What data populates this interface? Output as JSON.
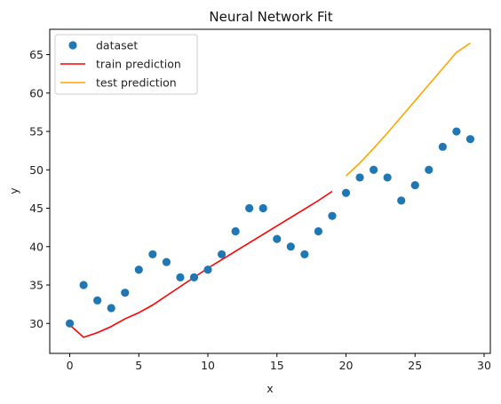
{
  "chart_data": {
    "type": "scatter",
    "title": "Neural Network Fit",
    "xlabel": "x",
    "ylabel": "y",
    "xlim": [
      -1.45,
      30.45
    ],
    "ylim": [
      26.1,
      68.3
    ],
    "xticks": [
      0,
      5,
      10,
      15,
      20,
      25,
      30
    ],
    "yticks": [
      30,
      35,
      40,
      45,
      50,
      55,
      60,
      65
    ],
    "grid": false,
    "legend_position": "top-left",
    "series": [
      {
        "name": "dataset",
        "kind": "scatter",
        "color": "#1f77b4",
        "x": [
          0,
          1,
          2,
          3,
          4,
          5,
          6,
          7,
          8,
          9,
          10,
          11,
          12,
          13,
          14,
          15,
          16,
          17,
          18,
          19,
          20,
          21,
          22,
          23,
          24,
          25,
          26,
          27,
          28,
          29
        ],
        "y": [
          30,
          35,
          33,
          32,
          34,
          37,
          39,
          38,
          36,
          36,
          37,
          39,
          42,
          45,
          45,
          41,
          40,
          39,
          42,
          44,
          47,
          49,
          50,
          49,
          46,
          48,
          50,
          53,
          55,
          54
        ]
      },
      {
        "name": "train prediction",
        "kind": "line",
        "color": "#ff0000",
        "x": [
          0,
          1,
          2,
          3,
          4,
          5,
          6,
          7,
          8,
          9,
          10,
          11,
          12,
          13,
          14,
          15,
          16,
          17,
          18,
          19
        ],
        "y": [
          29.8,
          28.2,
          28.8,
          29.6,
          30.6,
          31.4,
          32.4,
          33.6,
          34.8,
          36.0,
          37.2,
          38.3,
          39.4,
          40.5,
          41.6,
          42.7,
          43.8,
          44.9,
          46.0,
          47.2
        ]
      },
      {
        "name": "test prediction",
        "kind": "line",
        "color": "#ffa500",
        "x": [
          20,
          21,
          22,
          23,
          24,
          25,
          26,
          27,
          28,
          29
        ],
        "y": [
          49.2,
          50.9,
          52.8,
          54.8,
          56.9,
          59.0,
          61.1,
          63.2,
          65.3,
          66.5
        ]
      }
    ]
  }
}
